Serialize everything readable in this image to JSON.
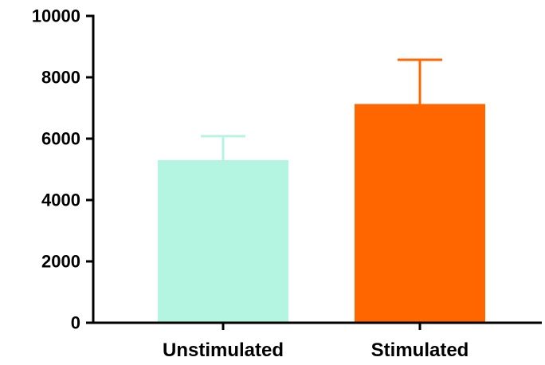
{
  "chart_data": {
    "type": "bar",
    "categories": [
      "Unstimulated",
      "Stimulated"
    ],
    "values": [
      5300,
      7130
    ],
    "error_upper": [
      6080,
      8570
    ],
    "colors": [
      "#b3f5e0",
      "#ff6600"
    ],
    "ylim": [
      0,
      10000
    ],
    "yticks": [
      0,
      2000,
      4000,
      6000,
      8000,
      10000
    ],
    "ytick_labels": [
      "0",
      "2000",
      "4000",
      "6000",
      "8000",
      "10000"
    ],
    "title": "",
    "xlabel": "",
    "ylabel": "",
    "grid": false
  }
}
